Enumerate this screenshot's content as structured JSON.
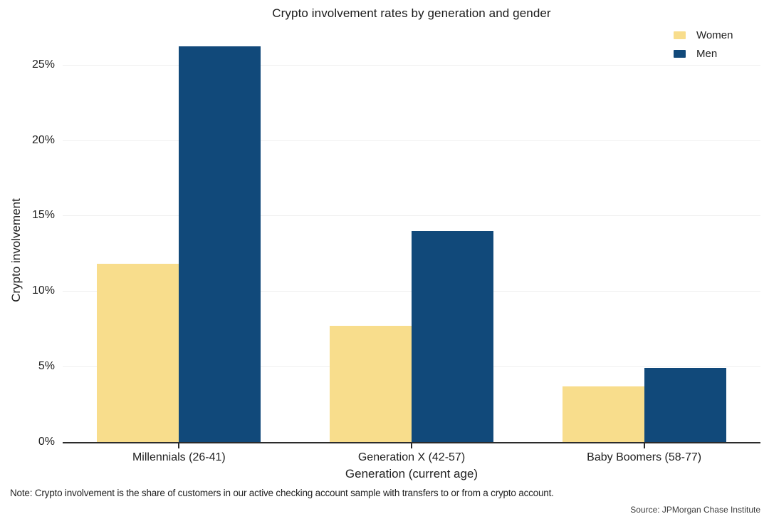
{
  "chart_data": {
    "type": "bar",
    "title": "Crypto involvement rates by generation and gender",
    "categories": [
      "Millennials (26-41)",
      "Generation X (42-57)",
      "Baby Boomers (58-77)"
    ],
    "series": [
      {
        "name": "Women",
        "color": "#f8dd8c",
        "values": [
          11.8,
          7.7,
          3.7
        ]
      },
      {
        "name": "Men",
        "color": "#11497a",
        "values": [
          26.2,
          14.0,
          4.9
        ]
      }
    ],
    "xlabel": "Generation (current age)",
    "ylabel": "Crypto involvement",
    "ylim": [
      0,
      27.4
    ],
    "yticks": [
      {
        "value": 0,
        "label": "0%"
      },
      {
        "value": 5,
        "label": "5%"
      },
      {
        "value": 10,
        "label": "10%"
      },
      {
        "value": 15,
        "label": "15%"
      },
      {
        "value": 20,
        "label": "20%"
      },
      {
        "value": 25,
        "label": "25%"
      }
    ],
    "grid": true,
    "legend_position": "top-right"
  },
  "footer": {
    "note": "Note: Crypto involvement is the share of customers in our active checking account sample with transfers to or from a crypto account.",
    "source": "Source: JPMorgan Chase Institute"
  }
}
